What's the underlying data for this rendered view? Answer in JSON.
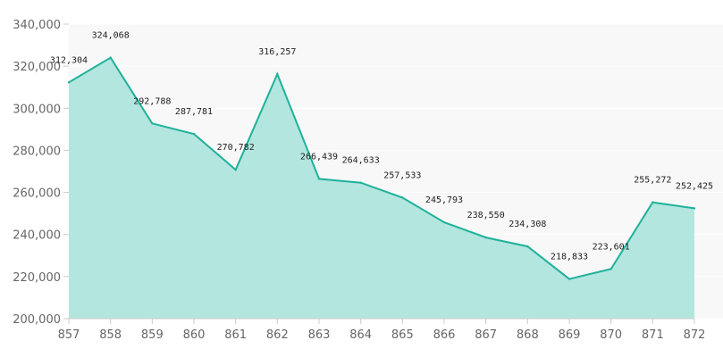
{
  "chart_data": {
    "type": "area",
    "title": "",
    "xlabel": "",
    "ylabel": "",
    "x": [
      857,
      858,
      859,
      860,
      861,
      862,
      863,
      864,
      865,
      866,
      867,
      868,
      869,
      870,
      871,
      872
    ],
    "series": [
      {
        "values": [
          312304,
          324068,
          292788,
          287781,
          270782,
          316257,
          266439,
          264633,
          257533,
          245793,
          238550,
          234308,
          218833,
          223601,
          255272,
          252425
        ],
        "value_labels": [
          "312,304",
          "324,068",
          "292,788",
          "287,781",
          "270,782",
          "316,257",
          "266,439",
          "264,633",
          "257,533",
          "245,793",
          "238,550",
          "234,308",
          "218,833",
          "223,601",
          "255,272",
          "252,425"
        ],
        "line_color": "#1fb19a",
        "fill_color": "#b3e6df"
      }
    ],
    "ylim": [
      200000,
      340000
    ],
    "xlim": [
      857,
      872
    ],
    "y_ticks": [
      200000,
      220000,
      240000,
      260000,
      280000,
      300000,
      320000,
      340000
    ],
    "y_tick_labels": [
      "200,000",
      "220,000",
      "240,000",
      "260,000",
      "280,000",
      "300,000",
      "320,000",
      "340,000"
    ],
    "x_tick_labels": [
      "857",
      "858",
      "859",
      "860",
      "861",
      "862",
      "863",
      "864",
      "865",
      "866",
      "867",
      "868",
      "869",
      "870",
      "871",
      "872"
    ],
    "grid": true,
    "legend": "none",
    "colors": {
      "plot_background": "#f8f8f8",
      "grid": "#ffffff",
      "axis": "#cccccc",
      "tick_text": "#666666",
      "label_text": "#222222"
    }
  }
}
